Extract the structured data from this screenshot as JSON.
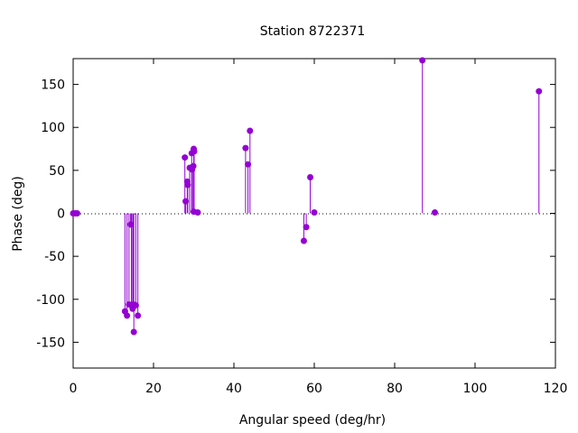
{
  "chart_data": {
    "type": "scatter",
    "title": "Station 8722371",
    "xlabel": "Angular speed (deg/hr)",
    "ylabel": "Phase (deg)",
    "xlim": [
      0,
      120
    ],
    "ylim": [
      -180,
      180
    ],
    "x_ticks": [
      0,
      20,
      40,
      60,
      80,
      100,
      120
    ],
    "y_ticks": [
      -150,
      -100,
      -50,
      0,
      50,
      100,
      150
    ],
    "x_tick_labels": [
      "0",
      "20",
      "40",
      "60",
      "80",
      "100",
      "120"
    ],
    "y_tick_labels": [
      "-150",
      "-100",
      "-50",
      "0",
      "50",
      "100",
      "150"
    ],
    "grid": false,
    "zero_line": "dotted",
    "marker_style": "impulse with filled circle",
    "series_color": "#9400d3",
    "points": [
      {
        "x": 0.0,
        "y": 0
      },
      {
        "x": 0.5,
        "y": 0
      },
      {
        "x": 1.0,
        "y": 0
      },
      {
        "x": 12.9,
        "y": -114
      },
      {
        "x": 13.4,
        "y": -119
      },
      {
        "x": 13.9,
        "y": -106
      },
      {
        "x": 14.3,
        "y": -13
      },
      {
        "x": 14.5,
        "y": -107
      },
      {
        "x": 14.8,
        "y": -111
      },
      {
        "x": 15.0,
        "y": -106
      },
      {
        "x": 15.1,
        "y": -138
      },
      {
        "x": 15.6,
        "y": -107
      },
      {
        "x": 16.1,
        "y": -119
      },
      {
        "x": 27.8,
        "y": 65
      },
      {
        "x": 28.0,
        "y": 14
      },
      {
        "x": 28.4,
        "y": 37
      },
      {
        "x": 28.5,
        "y": 33
      },
      {
        "x": 29.0,
        "y": 53
      },
      {
        "x": 29.5,
        "y": 70
      },
      {
        "x": 29.6,
        "y": 51
      },
      {
        "x": 29.9,
        "y": 55
      },
      {
        "x": 30.0,
        "y": 75
      },
      {
        "x": 30.1,
        "y": 72
      },
      {
        "x": 30.0,
        "y": 2
      },
      {
        "x": 31.0,
        "y": 1
      },
      {
        "x": 42.9,
        "y": 76
      },
      {
        "x": 43.5,
        "y": 57
      },
      {
        "x": 44.0,
        "y": 96
      },
      {
        "x": 57.4,
        "y": -32
      },
      {
        "x": 58.0,
        "y": -16
      },
      {
        "x": 59.0,
        "y": 42
      },
      {
        "x": 60.0,
        "y": 1
      },
      {
        "x": 86.9,
        "y": 178
      },
      {
        "x": 90.0,
        "y": 1
      },
      {
        "x": 115.9,
        "y": 142
      }
    ]
  }
}
